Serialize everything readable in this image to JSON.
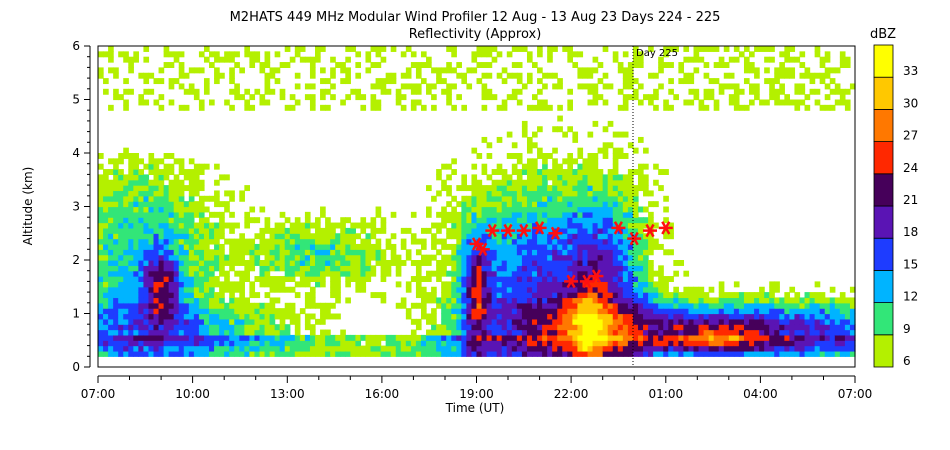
{
  "chart_data": {
    "type": "heatmap",
    "title": "M2HATS 449 MHz Modular Wind Profiler  12 Aug - 13 Aug 23 Days 224 - 225",
    "subtitle": "Reflectivity (Approx)",
    "xlabel": "Time (UT)",
    "ylabel": "Altitude (km)",
    "x_tick_labels": [
      "07:00",
      "10:00",
      "13:00",
      "16:00",
      "19:00",
      "22:00",
      "01:00",
      "04:00",
      "07:00"
    ],
    "x_range_hours_since_0700": [
      0,
      24
    ],
    "y_ticks": [
      0,
      1,
      2,
      3,
      4,
      5,
      6
    ],
    "ylim": [
      0,
      6
    ],
    "annotation": {
      "label": "Day 225",
      "x_hours_since_0700": 17
    },
    "colorbar": {
      "title": "dBZ",
      "levels": [
        6,
        9,
        12,
        15,
        18,
        21,
        24,
        27,
        30,
        33
      ],
      "colors": [
        "#b4f000",
        "#32e678",
        "#00b4ff",
        "#1e3cff",
        "#5a14b4",
        "#46005a",
        "#ff2800",
        "#ff7800",
        "#ffc800",
        "#ffff00"
      ]
    },
    "markers": {
      "symbol": "asterisk",
      "color": "#ff1010",
      "points_hours_km": [
        [
          12.0,
          2.3
        ],
        [
          12.2,
          2.2
        ],
        [
          12.5,
          2.55
        ],
        [
          13.0,
          2.55
        ],
        [
          13.5,
          2.55
        ],
        [
          14.0,
          2.6
        ],
        [
          14.5,
          2.5
        ],
        [
          15.0,
          1.6
        ],
        [
          15.5,
          1.6
        ],
        [
          15.8,
          1.7
        ],
        [
          16.5,
          2.6
        ],
        [
          17.0,
          2.4
        ],
        [
          17.5,
          2.55
        ],
        [
          18.0,
          2.6
        ]
      ]
    }
  }
}
